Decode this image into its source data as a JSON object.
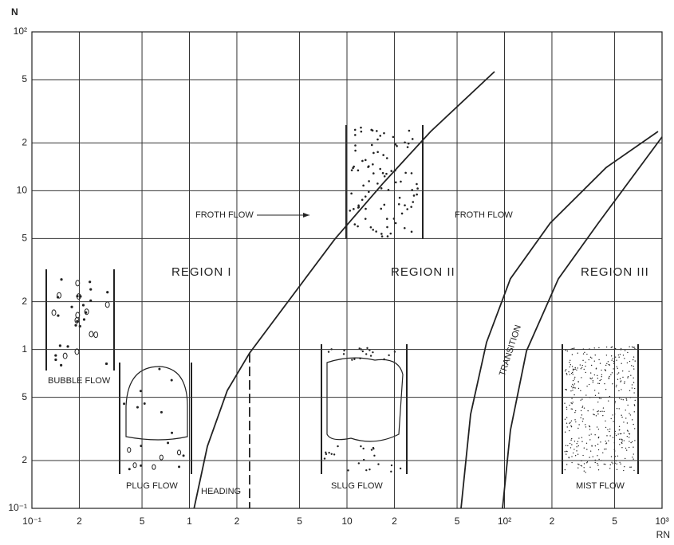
{
  "chart_data": {
    "type": "line",
    "y_label": "N",
    "x_label": "RN",
    "log_x": true,
    "log_y": true,
    "grid": true,
    "xlim": [
      0.1,
      1000
    ],
    "ylim": [
      0.1,
      100
    ],
    "xticks": [
      {
        "value": 0.1,
        "label": "10⁻¹"
      },
      {
        "value": 0.2,
        "label": "2"
      },
      {
        "value": 0.5,
        "label": "5"
      },
      1,
      {
        "value": 2,
        "label": "2"
      },
      {
        "value": 5,
        "label": "5"
      },
      10,
      {
        "value": 20,
        "label": "2"
      },
      {
        "value": 50,
        "label": "5"
      },
      {
        "value": 100,
        "label": "10²"
      },
      {
        "value": 200,
        "label": "2"
      },
      {
        "value": 500,
        "label": "5"
      },
      {
        "value": 1000,
        "label": "10³"
      }
    ],
    "yticks": [
      {
        "value": 0.1,
        "label": "10⁻¹"
      },
      {
        "value": 0.2,
        "label": "2"
      },
      {
        "value": 0.5,
        "label": "5"
      },
      1,
      {
        "value": 2,
        "label": "2"
      },
      {
        "value": 5,
        "label": "5"
      },
      10,
      {
        "value": 20,
        "label": "2"
      },
      {
        "value": 50,
        "label": "5"
      },
      {
        "value": 100,
        "label": "10²"
      }
    ],
    "series": [
      {
        "color": "#222222",
        "x": [
          1.07,
          1.3,
          1.74,
          2.41,
          4.17,
          8.39,
          16.9,
          34.0,
          86.4
        ],
        "values": [
          0.1,
          0.246,
          0.553,
          0.95,
          1.97,
          4.97,
          11.1,
          23.6,
          56.2
        ]
      },
      {
        "color": "#222222",
        "x": [
          53,
          60.9,
          76.9,
          109,
          195,
          442,
          943
        ],
        "values": [
          0.1,
          0.391,
          1.11,
          2.79,
          6.25,
          14.0,
          23.6
        ]
      },
      {
        "color": "#222222",
        "x": [
          97.1,
          109,
          138,
          220,
          394,
          1000
        ],
        "values": [
          0.1,
          0.31,
          0.98,
          2.79,
          6.25,
          21.8
        ]
      },
      {
        "color": "#222222",
        "dashed": true,
        "x": [
          2.41,
          2.41
        ],
        "values": [
          0.95,
          0.1
        ]
      }
    ],
    "annotations": [
      "FROTH FLOW",
      "REGION I",
      "REGION II",
      "FROTH FLOW",
      "REGION III",
      "BUBBLE FLOW",
      "PLUG FLOW",
      "HEADING",
      "SLUG FLOW",
      "TRANSITION",
      "MIST FLOW"
    ]
  }
}
